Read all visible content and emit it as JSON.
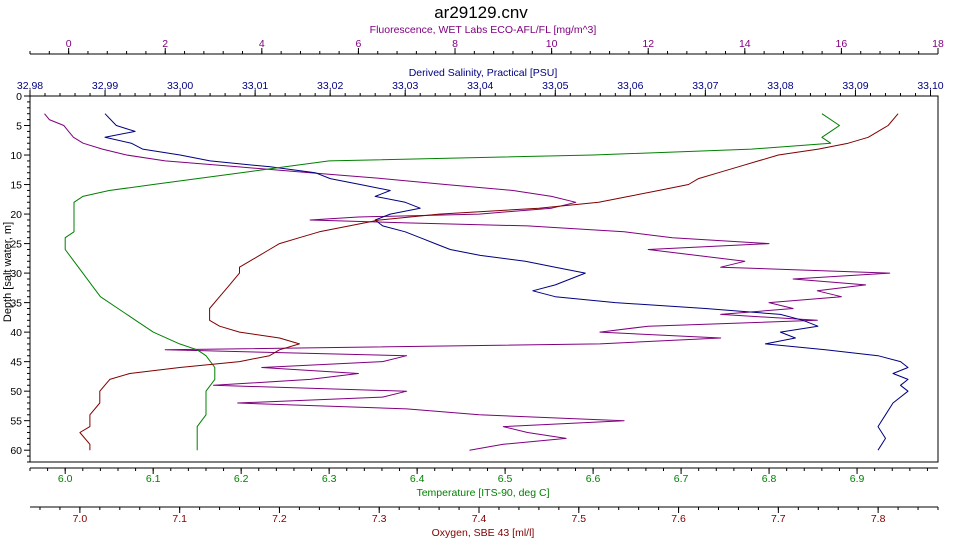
{
  "chart_data": {
    "type": "line",
    "title": "ar29129.cnv",
    "ylabel": "Depth [salt water, m]",
    "ylim": [
      0,
      62
    ],
    "y_reversed": true,
    "y_ticks": [
      0,
      5,
      10,
      15,
      20,
      25,
      30,
      35,
      40,
      45,
      50,
      55,
      60
    ],
    "grid": false,
    "axes": {
      "fluorescence": {
        "label": "Fluorescence, WET Labs ECO-AFL/FL [mg/m^3]",
        "position": "top",
        "color": "#800080",
        "range": [
          -0.8,
          18.0
        ],
        "ticks": [
          0,
          2,
          4,
          6,
          8,
          10,
          12,
          14,
          16,
          18
        ]
      },
      "salinity": {
        "label": "Derived Salinity, Practical [PSU]",
        "position": "top",
        "color": "#000080",
        "range": [
          32.98,
          33.101
        ],
        "ticks": [
          "32,98",
          "32,99",
          "33,00",
          "33,01",
          "33,02",
          "33,03",
          "33,04",
          "33,05",
          "33,06",
          "33,07",
          "33,08",
          "33,09",
          "33,10"
        ]
      },
      "temperature": {
        "label": "Temperature [ITS-90, deg C]",
        "position": "bottom",
        "color": "#008000",
        "range": [
          5.96,
          6.992
        ],
        "ticks": [
          "6.0",
          "6.1",
          "6.2",
          "6.3",
          "6.4",
          "6.5",
          "6.6",
          "6.7",
          "6.8",
          "6.9"
        ]
      },
      "oxygen": {
        "label": "Oxygen, SBE 43 [ml/l]",
        "position": "bottom",
        "color": "#800000",
        "range": [
          6.95,
          7.86
        ],
        "ticks": [
          "7.0",
          "7.1",
          "7.2",
          "7.3",
          "7.4",
          "7.5",
          "7.6",
          "7.7",
          "7.8"
        ]
      }
    },
    "series": [
      {
        "axis": "fluorescence",
        "color": "#800080",
        "points": [
          [
            -0.5,
            3
          ],
          [
            -0.4,
            4
          ],
          [
            -0.1,
            5
          ],
          [
            0.0,
            6
          ],
          [
            0.1,
            7
          ],
          [
            0.3,
            8
          ],
          [
            0.7,
            9
          ],
          [
            1.2,
            10
          ],
          [
            2.0,
            11
          ],
          [
            3.5,
            12
          ],
          [
            5.0,
            13
          ],
          [
            6.5,
            14
          ],
          [
            7.8,
            15
          ],
          [
            9.2,
            16
          ],
          [
            10.0,
            17
          ],
          [
            10.5,
            18
          ],
          [
            10.0,
            19
          ],
          [
            8.5,
            20
          ],
          [
            6.0,
            20.5
          ],
          [
            5.0,
            21
          ],
          [
            7.0,
            21.5
          ],
          [
            9.5,
            22
          ],
          [
            11.5,
            23
          ],
          [
            12.5,
            24
          ],
          [
            14.5,
            25
          ],
          [
            12.0,
            26
          ],
          [
            13.0,
            27
          ],
          [
            14.0,
            28
          ],
          [
            13.5,
            29
          ],
          [
            17.0,
            30
          ],
          [
            15.0,
            31
          ],
          [
            16.5,
            32
          ],
          [
            15.5,
            33
          ],
          [
            16.0,
            34
          ],
          [
            14.5,
            35
          ],
          [
            15.0,
            36
          ],
          [
            13.5,
            37
          ],
          [
            15.5,
            38
          ],
          [
            12.0,
            39
          ],
          [
            11.0,
            40
          ],
          [
            13.5,
            41
          ],
          [
            11.0,
            42
          ],
          [
            2.0,
            43
          ],
          [
            7.0,
            44
          ],
          [
            6.5,
            45
          ],
          [
            4.0,
            46
          ],
          [
            6.0,
            47
          ],
          [
            5.0,
            48
          ],
          [
            3.0,
            49
          ],
          [
            7.0,
            50
          ],
          [
            6.5,
            51
          ],
          [
            3.5,
            52
          ],
          [
            7.0,
            53
          ],
          [
            8.5,
            54
          ],
          [
            11.5,
            55
          ],
          [
            9.0,
            56
          ],
          [
            9.5,
            57
          ],
          [
            10.3,
            58
          ],
          [
            9.0,
            59
          ],
          [
            8.3,
            60
          ]
        ]
      },
      {
        "axis": "salinity",
        "color": "#000080",
        "points": [
          [
            32.99,
            3
          ],
          [
            32.9915,
            5
          ],
          [
            32.994,
            6
          ],
          [
            32.99,
            7
          ],
          [
            32.9935,
            8
          ],
          [
            32.995,
            9
          ],
          [
            33.0,
            10
          ],
          [
            33.004,
            11
          ],
          [
            33.012,
            12
          ],
          [
            33.018,
            13
          ],
          [
            33.02,
            14
          ],
          [
            33.024,
            15
          ],
          [
            33.028,
            16
          ],
          [
            33.026,
            17
          ],
          [
            33.03,
            18
          ],
          [
            33.032,
            19
          ],
          [
            33.028,
            20
          ],
          [
            33.026,
            21
          ],
          [
            33.027,
            22
          ],
          [
            33.03,
            23
          ],
          [
            33.032,
            24
          ],
          [
            33.034,
            25
          ],
          [
            33.036,
            26
          ],
          [
            33.04,
            27
          ],
          [
            33.046,
            28
          ],
          [
            33.05,
            29
          ],
          [
            33.054,
            30
          ],
          [
            33.052,
            31
          ],
          [
            33.05,
            32
          ],
          [
            33.047,
            33
          ],
          [
            33.05,
            34
          ],
          [
            33.058,
            35
          ],
          [
            33.07,
            36
          ],
          [
            33.08,
            37
          ],
          [
            33.083,
            38
          ],
          [
            33.085,
            39
          ],
          [
            33.08,
            40
          ],
          [
            33.082,
            41
          ],
          [
            33.078,
            42
          ],
          [
            33.086,
            43
          ],
          [
            33.093,
            44
          ],
          [
            33.096,
            45
          ],
          [
            33.097,
            46
          ],
          [
            33.095,
            47
          ],
          [
            33.097,
            48
          ],
          [
            33.096,
            49
          ],
          [
            33.097,
            50
          ],
          [
            33.095,
            52
          ],
          [
            33.094,
            54
          ],
          [
            33.093,
            56
          ],
          [
            33.094,
            58
          ],
          [
            33.093,
            60
          ]
        ]
      },
      {
        "axis": "temperature",
        "color": "#008000",
        "points": [
          [
            6.86,
            3
          ],
          [
            6.88,
            5
          ],
          [
            6.87,
            6
          ],
          [
            6.86,
            7
          ],
          [
            6.87,
            8
          ],
          [
            6.78,
            9
          ],
          [
            6.6,
            10
          ],
          [
            6.3,
            11
          ],
          [
            6.25,
            12
          ],
          [
            6.2,
            13
          ],
          [
            6.15,
            14
          ],
          [
            6.1,
            15
          ],
          [
            6.05,
            16
          ],
          [
            6.02,
            17
          ],
          [
            6.01,
            18
          ],
          [
            6.01,
            19
          ],
          [
            6.01,
            20
          ],
          [
            6.01,
            21
          ],
          [
            6.01,
            22
          ],
          [
            6.01,
            23
          ],
          [
            6.0,
            24
          ],
          [
            6.0,
            25
          ],
          [
            6.0,
            26
          ],
          [
            6.01,
            28
          ],
          [
            6.02,
            30
          ],
          [
            6.03,
            32
          ],
          [
            6.04,
            34
          ],
          [
            6.06,
            36
          ],
          [
            6.08,
            38
          ],
          [
            6.1,
            40
          ],
          [
            6.13,
            42
          ],
          [
            6.15,
            43
          ],
          [
            6.16,
            44
          ],
          [
            6.17,
            46
          ],
          [
            6.17,
            48
          ],
          [
            6.16,
            50
          ],
          [
            6.16,
            52
          ],
          [
            6.16,
            54
          ],
          [
            6.15,
            56
          ],
          [
            6.15,
            58
          ],
          [
            6.15,
            60
          ]
        ]
      },
      {
        "axis": "oxygen",
        "color": "#800000",
        "points": [
          [
            7.82,
            3
          ],
          [
            7.81,
            5
          ],
          [
            7.8,
            6
          ],
          [
            7.79,
            7
          ],
          [
            7.77,
            8
          ],
          [
            7.74,
            9
          ],
          [
            7.7,
            10
          ],
          [
            7.68,
            11
          ],
          [
            7.66,
            12
          ],
          [
            7.64,
            13
          ],
          [
            7.62,
            14
          ],
          [
            7.61,
            15
          ],
          [
            7.58,
            16
          ],
          [
            7.55,
            17
          ],
          [
            7.52,
            18
          ],
          [
            7.46,
            19
          ],
          [
            7.36,
            20
          ],
          [
            7.3,
            21
          ],
          [
            7.27,
            22
          ],
          [
            7.24,
            23
          ],
          [
            7.22,
            24
          ],
          [
            7.2,
            25
          ],
          [
            7.19,
            26
          ],
          [
            7.18,
            27
          ],
          [
            7.17,
            28
          ],
          [
            7.16,
            29
          ],
          [
            7.16,
            30
          ],
          [
            7.15,
            32
          ],
          [
            7.14,
            34
          ],
          [
            7.13,
            36
          ],
          [
            7.13,
            38
          ],
          [
            7.14,
            39
          ],
          [
            7.16,
            40
          ],
          [
            7.2,
            41
          ],
          [
            7.22,
            42
          ],
          [
            7.2,
            43
          ],
          [
            7.19,
            44
          ],
          [
            7.16,
            45
          ],
          [
            7.1,
            46
          ],
          [
            7.05,
            47
          ],
          [
            7.03,
            48
          ],
          [
            7.02,
            50
          ],
          [
            7.02,
            52
          ],
          [
            7.01,
            54
          ],
          [
            7.01,
            56
          ],
          [
            7.0,
            57
          ],
          [
            7.01,
            59
          ],
          [
            7.01,
            60
          ]
        ]
      }
    ]
  }
}
